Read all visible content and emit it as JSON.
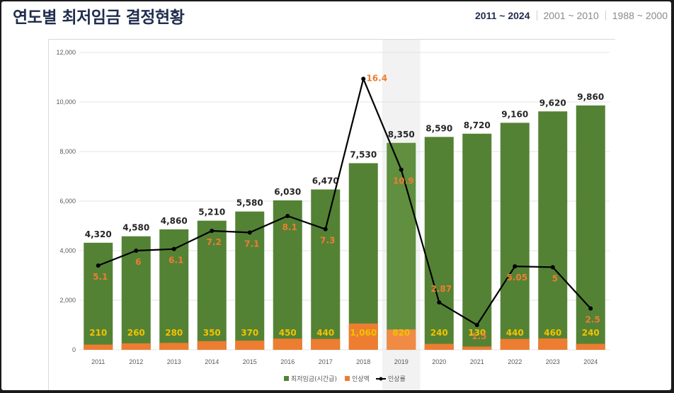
{
  "header": {
    "title": "연도별 최저임금 결정현황",
    "tabs": [
      {
        "label": "2011 ~ 2024",
        "active": true
      },
      {
        "label": "2001 ~ 2010",
        "active": false
      },
      {
        "label": "1988 ~ 2000",
        "active": false
      }
    ]
  },
  "chart_data": {
    "type": "bar",
    "categories": [
      "2011",
      "2012",
      "2013",
      "2014",
      "2015",
      "2016",
      "2017",
      "2018",
      "2019",
      "2020",
      "2021",
      "2022",
      "2023",
      "2024"
    ],
    "series": [
      {
        "name": "최저임금(시간급)",
        "type": "bar",
        "axis": "left",
        "color": "#548235",
        "values": [
          4320,
          4580,
          4860,
          5210,
          5580,
          6030,
          6470,
          7530,
          8350,
          8590,
          8720,
          9160,
          9620,
          9860
        ],
        "labels": [
          "4,320",
          "4,580",
          "4,860",
          "5,210",
          "5,580",
          "6,030",
          "6,470",
          "7,530",
          "8,350",
          "8,590",
          "8,720",
          "9,160",
          "9,620",
          "9,860"
        ]
      },
      {
        "name": "인상액",
        "type": "bar",
        "axis": "left",
        "color": "#ed7d31",
        "values": [
          210,
          260,
          280,
          350,
          370,
          450,
          440,
          1060,
          820,
          240,
          130,
          440,
          460,
          240
        ],
        "labels": [
          "210",
          "260",
          "280",
          "350",
          "370",
          "450",
          "440",
          "1,060",
          "820",
          "240",
          "130",
          "440",
          "460",
          "240"
        ]
      },
      {
        "name": "인상률",
        "type": "line",
        "axis": "right",
        "color": "#000000",
        "values": [
          5.1,
          6,
          6.1,
          7.2,
          7.1,
          8.1,
          7.3,
          16.4,
          10.9,
          2.87,
          1.5,
          5.05,
          5,
          2.5
        ],
        "labels": [
          "5.1",
          "6",
          "6.1",
          "7.2",
          "7.1",
          "8.1",
          "7.3",
          "16.4",
          "10.9",
          "2.87",
          "1.5",
          "5.05",
          "5",
          "2.5"
        ]
      }
    ],
    "ylim": [
      0,
      12000
    ],
    "y_ticks": [
      "0",
      "2,000",
      "4,000",
      "6,000",
      "8,000",
      "10,000",
      "12,000"
    ],
    "y2lim": [
      0,
      18
    ],
    "y2_ticks": [
      "0",
      "2",
      "4",
      "6",
      "8",
      "10",
      "12",
      "14",
      "16",
      "18"
    ],
    "highlighted_category": "2019",
    "grid": true,
    "legend_position": "bottom"
  }
}
